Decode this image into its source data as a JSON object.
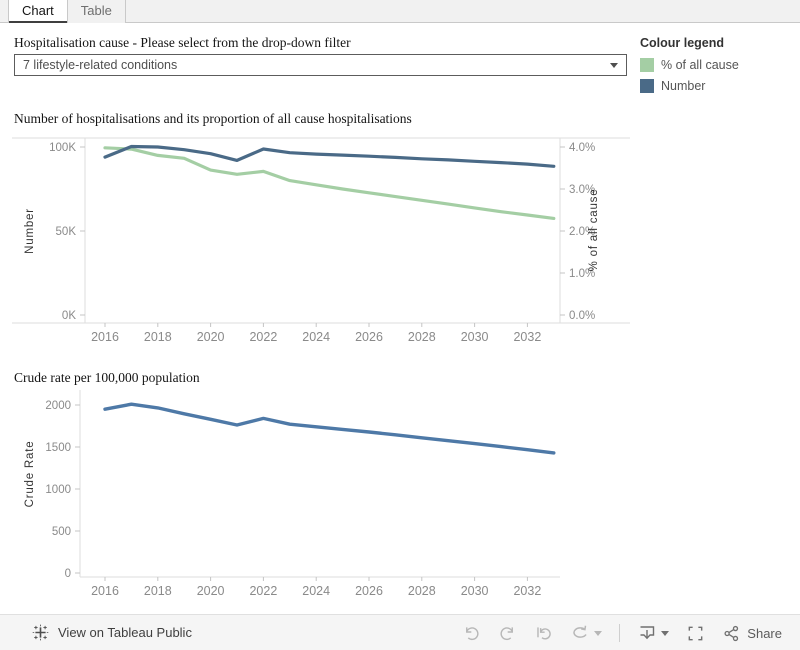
{
  "tabs": [
    {
      "label": "Chart",
      "active": true
    },
    {
      "label": "Table",
      "active": false
    }
  ],
  "filter": {
    "label": "Hospitalisation cause - Please select from the drop-down filter",
    "value": "7 lifestyle-related conditions"
  },
  "legend": {
    "title": "Colour legend",
    "items": [
      {
        "label": "% of all cause",
        "color": "#a4cea4"
      },
      {
        "label": "Number",
        "color": "#4a6a87"
      }
    ]
  },
  "chart_data": [
    {
      "type": "line",
      "title": "Number of hospitalisations and its proportion of all cause hospitalisations",
      "x": [
        2016,
        2017,
        2018,
        2019,
        2020,
        2021,
        2022,
        2023,
        2024,
        2025,
        2026,
        2027,
        2028,
        2029,
        2030,
        2031,
        2032,
        2033
      ],
      "x_ticks": [
        2016,
        2018,
        2020,
        2022,
        2024,
        2026,
        2028,
        2030,
        2032
      ],
      "left_axis": {
        "label": "Number",
        "range": [
          0,
          105000
        ],
        "ticks": [
          {
            "v": 0,
            "label": "0K"
          },
          {
            "v": 50000,
            "label": "50K"
          },
          {
            "v": 100000,
            "label": "100K"
          }
        ]
      },
      "right_axis": {
        "label": "% of all cause",
        "range": [
          0,
          4.2
        ],
        "ticks": [
          {
            "v": 0,
            "label": "0.0%"
          },
          {
            "v": 1,
            "label": "1.0%"
          },
          {
            "v": 2,
            "label": "2.0%"
          },
          {
            "v": 3,
            "label": "3.0%"
          },
          {
            "v": 4,
            "label": "4.0%"
          }
        ]
      },
      "grid": false,
      "legend_position": "right",
      "series": [
        {
          "name": "% of all cause",
          "axis": "right",
          "color": "#a4cea4",
          "values": [
            3.98,
            3.95,
            3.8,
            3.73,
            3.45,
            3.35,
            3.42,
            3.2,
            3.1,
            3.0,
            2.91,
            2.82,
            2.73,
            2.64,
            2.55,
            2.46,
            2.38,
            2.3
          ]
        },
        {
          "name": "Number",
          "axis": "left",
          "color": "#4a6a87",
          "values": [
            94000,
            100300,
            100000,
            98400,
            96000,
            92000,
            98800,
            96600,
            95800,
            95200,
            94500,
            93800,
            93000,
            92300,
            91500,
            90700,
            89800,
            88500
          ]
        }
      ]
    },
    {
      "type": "line",
      "title": "Crude rate per 100,000 population",
      "ylabel": "Crude Rate",
      "x": [
        2016,
        2017,
        2018,
        2019,
        2020,
        2021,
        2022,
        2023,
        2024,
        2025,
        2026,
        2027,
        2028,
        2029,
        2030,
        2031,
        2032,
        2033
      ],
      "x_ticks": [
        2016,
        2018,
        2020,
        2022,
        2024,
        2026,
        2028,
        2030,
        2032
      ],
      "y_axis": {
        "range": [
          0,
          2100
        ],
        "ticks": [
          {
            "v": 0,
            "label": "0"
          },
          {
            "v": 500,
            "label": "500"
          },
          {
            "v": 1000,
            "label": "1000"
          },
          {
            "v": 1500,
            "label": "1500"
          },
          {
            "v": 2000,
            "label": "2000"
          }
        ]
      },
      "grid": false,
      "series": [
        {
          "name": "Crude Rate",
          "color": "#4e79a7",
          "values": [
            1950,
            2010,
            1965,
            1895,
            1830,
            1762,
            1840,
            1772,
            1740,
            1710,
            1678,
            1645,
            1610,
            1575,
            1540,
            1505,
            1468,
            1430
          ]
        }
      ]
    }
  ],
  "footer": {
    "view_label": "View on Tableau Public",
    "share_label": "Share",
    "icons": [
      "tableau-logo-icon",
      "undo-icon",
      "redo-icon",
      "replay-icon",
      "refresh-icon",
      "download-icon",
      "fullscreen-icon",
      "share-icon"
    ]
  },
  "colors": {
    "pct_series": "#a4cea4",
    "number_series": "#4a6a87",
    "crude_series": "#4e79a7",
    "tick_label": "#8a8a8a",
    "footer_bg": "#f5f5f5"
  }
}
